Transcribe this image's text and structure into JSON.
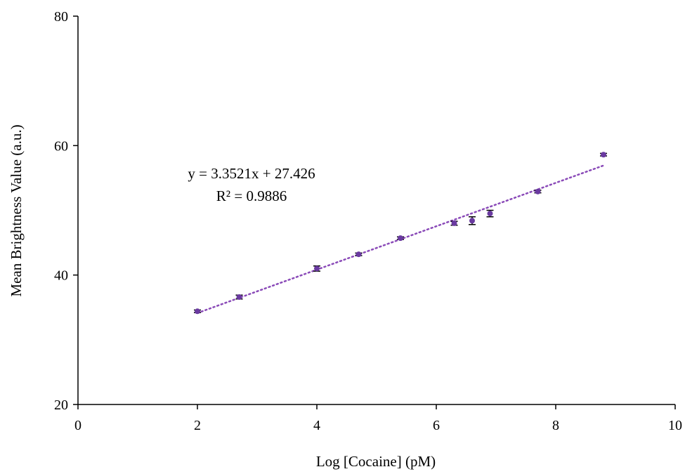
{
  "chart_data": {
    "type": "scatter",
    "title": "",
    "xlabel": "Log [Cocaine] (pM)",
    "ylabel": "Mean Brightness Value (a.u.)",
    "xlim": [
      0,
      10
    ],
    "ylim": [
      20,
      80
    ],
    "xticks": [
      0,
      2,
      4,
      6,
      8,
      10
    ],
    "yticks": [
      20,
      40,
      60,
      80
    ],
    "grid": false,
    "legend": "none",
    "series": [
      {
        "color": "#6a3aa0",
        "points": [
          {
            "x": 2.0,
            "y": 34.4,
            "err": 0.2
          },
          {
            "x": 2.7,
            "y": 36.6,
            "err": 0.3
          },
          {
            "x": 4.0,
            "y": 41.0,
            "err": 0.4
          },
          {
            "x": 4.7,
            "y": 43.2,
            "err": 0.2
          },
          {
            "x": 5.4,
            "y": 45.7,
            "err": 0.2
          },
          {
            "x": 6.3,
            "y": 48.0,
            "err": 0.3
          },
          {
            "x": 6.6,
            "y": 48.4,
            "err": 0.6
          },
          {
            "x": 6.9,
            "y": 49.5,
            "err": 0.5
          },
          {
            "x": 7.7,
            "y": 52.9,
            "err": 0.2
          },
          {
            "x": 8.8,
            "y": 58.6,
            "err": 0.2
          }
        ]
      }
    ],
    "trendline": {
      "type": "linear",
      "slope": 3.3521,
      "intercept": 27.426,
      "x_range": [
        2.0,
        8.8
      ],
      "style": "dotted",
      "color": "#8a4ab8"
    },
    "annotations": {
      "equation": "y = 3.3521x + 27.426",
      "r_squared": "R² = 0.9886"
    }
  }
}
